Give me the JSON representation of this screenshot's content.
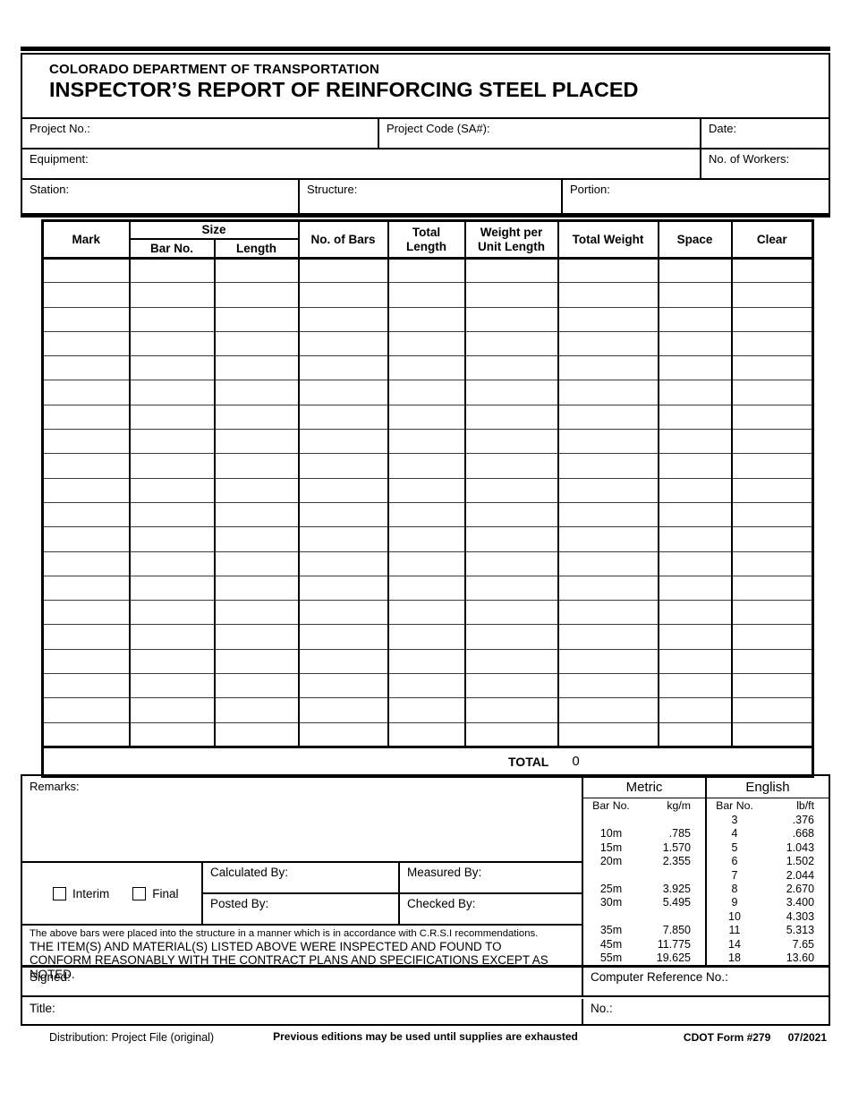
{
  "header": {
    "agency": "COLORADO DEPARTMENT OF TRANSPORTATION",
    "title": "INSPECTOR’S REPORT OF REINFORCING STEEL PLACED",
    "fields": {
      "project_no": "Project No.:",
      "project_code": "Project Code (SA#):",
      "date": "Date:",
      "equipment": "Equipment:",
      "workers": "No. of Workers:",
      "station": "Station:",
      "structure": "Structure:",
      "portion": "Portion:"
    }
  },
  "grid": {
    "col_mark": "Mark",
    "col_size": "Size",
    "col_bar_no": "Bar No.",
    "col_length": "Length",
    "col_no_of_bars": "No. of Bars",
    "col_total_length": "Total Length",
    "col_weight_per_unit": "Weight per Unit Length",
    "col_total_weight": "Total Weight",
    "col_space": "Space",
    "col_clear": "Clear",
    "body_row_count": 20,
    "total_label": "TOTAL",
    "total_value": "0"
  },
  "weights_table": {
    "metric_header": "Metric",
    "english_header": "English",
    "metric_col1": "Bar No.",
    "metric_col2": "kg/m",
    "english_col1": "Bar No.",
    "english_col2": "lb/ft",
    "rows": [
      {
        "m_bar": "",
        "m_kg": "",
        "e_bar": "3",
        "e_lb": ".376"
      },
      {
        "m_bar": "10m",
        "m_kg": ".785",
        "e_bar": "4",
        "e_lb": ".668"
      },
      {
        "m_bar": "15m",
        "m_kg": "1.570",
        "e_bar": "5",
        "e_lb": "1.043"
      },
      {
        "m_bar": "20m",
        "m_kg": "2.355",
        "e_bar": "6",
        "e_lb": "1.502"
      },
      {
        "m_bar": "",
        "m_kg": "",
        "e_bar": "7",
        "e_lb": "2.044"
      },
      {
        "m_bar": "25m",
        "m_kg": "3.925",
        "e_bar": "8",
        "e_lb": "2.670"
      },
      {
        "m_bar": "30m",
        "m_kg": "5.495",
        "e_bar": "9",
        "e_lb": "3.400"
      },
      {
        "m_bar": "",
        "m_kg": "",
        "e_bar": "10",
        "e_lb": "4.303"
      },
      {
        "m_bar": "35m",
        "m_kg": "7.850",
        "e_bar": "11",
        "e_lb": "5.313"
      },
      {
        "m_bar": "45m",
        "m_kg": "11.775",
        "e_bar": "14",
        "e_lb": "7.65"
      },
      {
        "m_bar": "55m",
        "m_kg": "19.625",
        "e_bar": "18",
        "e_lb": "13.60"
      }
    ]
  },
  "bottom": {
    "remarks_label": "Remarks:",
    "interim_label": "Interim",
    "final_label": "Final",
    "calculated_by": "Calculated By:",
    "measured_by": "Measured By:",
    "posted_by": "Posted By:",
    "checked_by": "Checked By:",
    "cert_line1": "The above bars were placed into the structure in a manner which is in accordance with C.R.S.I recommendations.",
    "cert_line2": "THE ITEM(S) AND MATERIAL(S) LISTED ABOVE WERE INSPECTED AND FOUND TO CONFORM REASONABLY WITH THE CONTRACT PLANS AND SPECIFICATIONS EXCEPT AS NOTED.",
    "signed_label": "Signed:",
    "title_label": "Title:",
    "computer_ref_label": "Computer Reference No.:",
    "no_label": "No.:"
  },
  "footer": {
    "distribution": "Distribution: Project File (original)",
    "center_note": "Previous editions may be used until supplies are exhausted",
    "form_number": "CDOT Form #279",
    "revision": "07/2021"
  }
}
